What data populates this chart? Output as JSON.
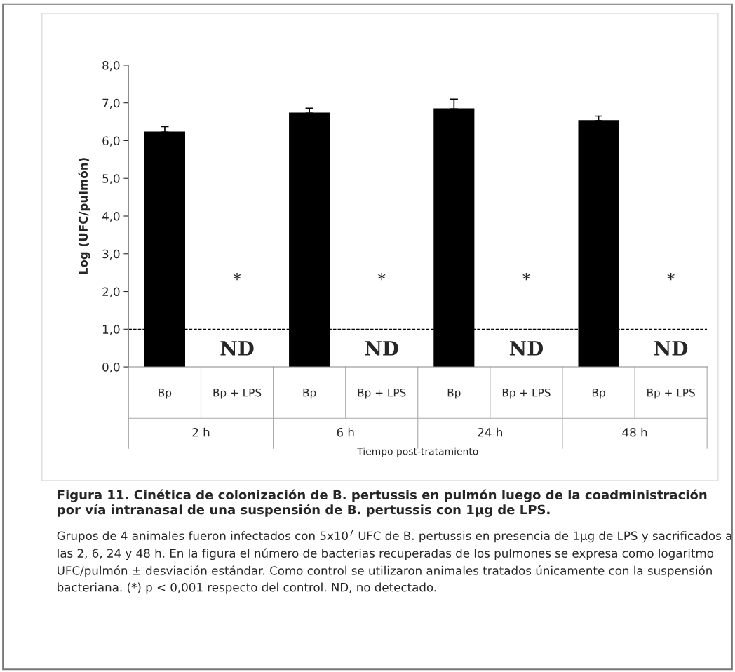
{
  "chart_data": {
    "type": "bar",
    "categories": [
      "Bp",
      "Bp + LPS",
      "Bp",
      "Bp + LPS",
      "Bp",
      "Bp + LPS",
      "Bp",
      "Bp + LPS"
    ],
    "values": [
      6.23,
      null,
      6.73,
      null,
      6.84,
      null,
      6.53,
      null
    ],
    "errors": [
      0.14,
      null,
      0.13,
      null,
      0.26,
      null,
      0.12,
      null
    ],
    "color": "#000000",
    "ylabel": "Log (UFC/pulmón)",
    "xlabel": "Tiempo post-tratamiento",
    "ylim": [
      0,
      8
    ],
    "yticks": [
      {
        "value": 0,
        "label": "0,0"
      },
      {
        "value": 1,
        "label": "1,0"
      },
      {
        "value": 2,
        "label": "2,0"
      },
      {
        "value": 3,
        "label": "3,0"
      },
      {
        "value": 4,
        "label": "4,0"
      },
      {
        "value": 5,
        "label": "5,0"
      },
      {
        "value": 6,
        "label": "6,0"
      },
      {
        "value": 7,
        "label": "7,0"
      },
      {
        "value": 8,
        "label": "8,0"
      }
    ],
    "ref_lines": [
      {
        "axis": "y",
        "value": 1,
        "label": null,
        "color": "#000000",
        "line_style": "dashed"
      }
    ],
    "grid": false,
    "annotations": [
      "*",
      "*",
      "*",
      "*",
      "ND",
      "ND",
      "ND",
      "ND",
      "2 h",
      "6 h",
      "24 h",
      "48 h",
      "Figura 11. Cinética de colonización de B. pertussis en pulmón luego de la coadministración por vía intranasal de una suspensión de B. pertussis con 1µg de LPS.",
      "Grupos de 4 animales fueron infectados con 5x10$^{7}$ UFC de B. pertussis en presencia de 1µg de LPS y sacrificados a las 2, 6, 24 y 48 h. En la figura el número de bacterias recuperadas de los pulmones se expresa como logaritmo UFC/pulmón ± desviación estándar. Como control se utilizaron animales tratados únicamente con la suspensión bacteriana. (*) p < 0,001 respecto del control. ND, no detectado."
    ]
  }
}
